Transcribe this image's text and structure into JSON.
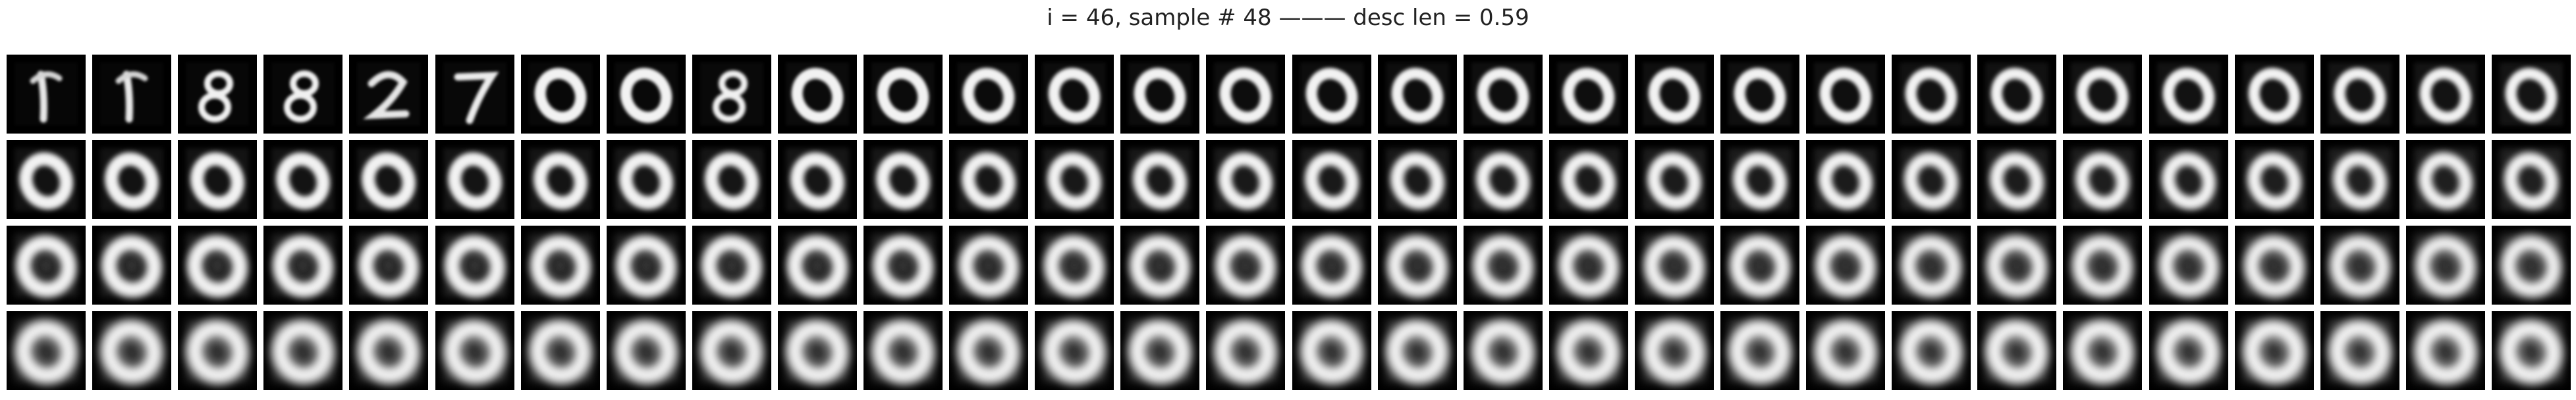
{
  "figure": {
    "title": "i = 46, sample # 48 ——— desc len = 0.59"
  },
  "grid": {
    "rows": 4,
    "cols": 30,
    "cells": [
      [
        "1",
        "1",
        "8",
        "8",
        "2",
        "7",
        "0",
        "0",
        "8",
        "0",
        "0",
        "0",
        "0",
        "0",
        "0",
        "0",
        "0",
        "0",
        "0",
        "0",
        "0",
        "0",
        "0",
        "0",
        "0",
        "0",
        "0",
        "0",
        "0",
        "0"
      ],
      [
        "0",
        "0",
        "0",
        "0",
        "0",
        "0",
        "0",
        "0",
        "0",
        "0",
        "0",
        "0",
        "0",
        "0",
        "0",
        "0",
        "0",
        "0",
        "0",
        "0",
        "0",
        "0",
        "0",
        "0",
        "0",
        "0",
        "0",
        "0",
        "0",
        "0"
      ],
      [
        "0",
        "0",
        "0",
        "0",
        "0",
        "0",
        "0",
        "0",
        "0",
        "0",
        "0",
        "0",
        "0",
        "0",
        "0",
        "0",
        "0",
        "0",
        "0",
        "0",
        "0",
        "0",
        "0",
        "0",
        "0",
        "0",
        "0",
        "0",
        "0",
        "0"
      ],
      [
        "0",
        "0",
        "0",
        "0",
        "0",
        "0",
        "0",
        "0",
        "0",
        "0",
        "0",
        "0",
        "0",
        "0",
        "0",
        "0",
        "0",
        "0",
        "0",
        "0",
        "0",
        "0",
        "0",
        "0",
        "0",
        "0",
        "0",
        "0",
        "0",
        "0"
      ]
    ]
  }
}
